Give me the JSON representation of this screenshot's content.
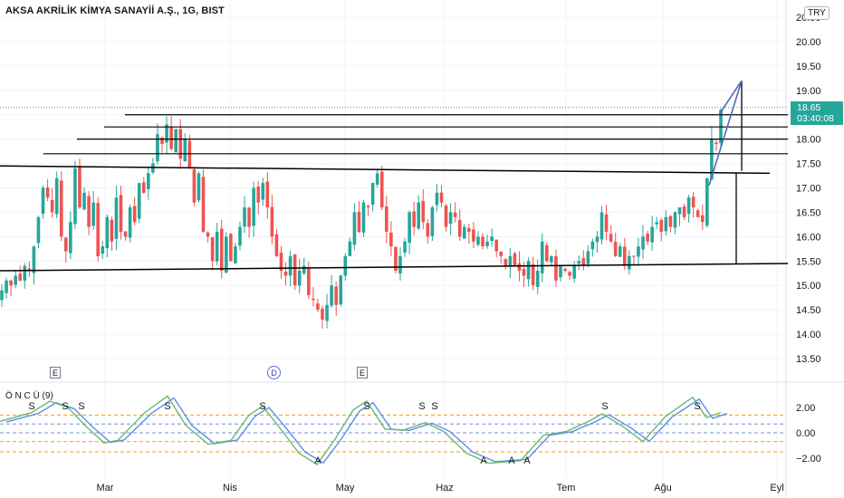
{
  "header": {
    "title": "AKSA AKRİLİK KİMYA SANAYİİ A.Ş., 1G, BIST",
    "currency": "TRY"
  },
  "price_label": {
    "value": "18.65",
    "countdown": "03:40:08",
    "color": "#26a69a"
  },
  "indicator": {
    "title": "Ö N C Ü (9)",
    "y_ticks": [
      "2.00",
      "0.00",
      "−2.00"
    ]
  },
  "events": [
    {
      "label": "E",
      "kind": "earnings"
    },
    {
      "label": "D",
      "kind": "dividend"
    },
    {
      "label": "E",
      "kind": "earnings"
    }
  ],
  "colors": {
    "up": "#26a69a",
    "down": "#ef5350",
    "trendline": "#000000",
    "wedge": "#4a6bb8",
    "osc_fast": "#66bb6a",
    "osc_slow": "#5b8def",
    "orange_levels": "#ff9800",
    "blue_levels": "#7e8fd6"
  },
  "chart_data": [
    {
      "type": "candlestick",
      "title": "AKSA AKRİLİK KİMYA SANAYİİ A.Ş., 1G, BIST",
      "y_ticks": [
        "13.50",
        "14.00",
        "14.50",
        "15.00",
        "15.50",
        "16.00",
        "16.50",
        "17.00",
        "17.50",
        "18.00",
        "18.50",
        "19.00",
        "19.50",
        "20.00",
        "20.50"
      ],
      "x_ticks": [
        "Mar",
        "Nis",
        "May",
        "Haz",
        "Tem",
        "Ağu",
        "Eyl"
      ],
      "ylim": [
        13.2,
        20.6
      ],
      "last_price": 18.65,
      "closes": [
        14.9,
        15.1,
        15.0,
        15.2,
        15.1,
        15.4,
        15.3,
        15.8,
        16.4,
        17.0,
        16.8,
        16.5,
        17.2,
        16.0,
        15.7,
        16.3,
        17.4,
        16.6,
        16.9,
        16.2,
        16.7,
        15.6,
        15.8,
        16.4,
        15.9,
        16.8,
        16.1,
        16.0,
        16.6,
        16.3,
        17.1,
        16.9,
        17.3,
        17.5,
        18.1,
        17.9,
        18.3,
        17.8,
        18.2,
        17.6,
        18.0,
        17.4,
        16.7,
        17.3,
        16.1,
        16.0,
        15.5,
        16.1,
        15.3,
        16.0,
        15.5,
        15.8,
        16.2,
        16.6,
        16.2,
        17.0,
        16.7,
        17.1,
        16.6,
        16.0,
        15.6,
        15.3,
        15.2,
        15.6,
        15.0,
        15.3,
        15.4,
        14.8,
        14.7,
        14.5,
        14.3,
        14.6,
        15.0,
        14.6,
        15.2,
        15.6,
        15.9,
        16.5,
        16.1,
        16.7,
        16.6,
        17.1,
        17.3,
        16.6,
        16.1,
        15.8,
        15.3,
        15.6,
        15.9,
        16.5,
        16.2,
        16.7,
        16.3,
        16.0,
        16.6,
        16.9,
        16.7,
        16.2,
        16.5,
        16.4,
        16.0,
        16.2,
        16.1,
        15.9,
        16.0,
        15.8,
        15.9,
        16.0,
        15.7,
        15.6,
        15.4,
        15.6,
        15.4,
        15.3,
        15.2,
        15.5,
        15.0,
        15.3,
        15.9,
        15.5,
        15.6,
        15.1,
        15.4,
        15.3,
        15.2,
        15.4,
        15.5,
        15.4,
        15.7,
        15.9,
        16.0,
        16.5,
        16.1,
        15.9,
        15.6,
        15.8,
        15.4,
        15.6,
        15.6,
        15.8,
        16.0,
        15.9,
        16.2,
        16.3,
        16.1,
        16.4,
        16.2,
        16.5,
        16.6,
        16.4,
        16.8,
        16.6,
        16.4,
        16.3,
        17.2,
        18.0,
        17.9,
        18.6
      ],
      "support_resistance": [
        15.45,
        17.3,
        17.7,
        18.0,
        18.25,
        18.5
      ],
      "target_projection": [
        15.45,
        17.3
      ],
      "wedge_apex": 19.2
    },
    {
      "type": "line",
      "title": "Ö N C Ü (9)",
      "y_ticks": [
        "2.00",
        "0.00",
        "−2.00"
      ],
      "ylim": [
        -3.0,
        3.2
      ],
      "levels_orange": [
        1.4,
        -0.7,
        -1.5
      ],
      "levels_blue": [
        0.7,
        0.0
      ],
      "markers": [
        "S",
        "S",
        "S",
        "S",
        "S",
        "A",
        "S",
        "S",
        "S",
        "A",
        "A",
        "A",
        "S",
        "S"
      ]
    }
  ]
}
